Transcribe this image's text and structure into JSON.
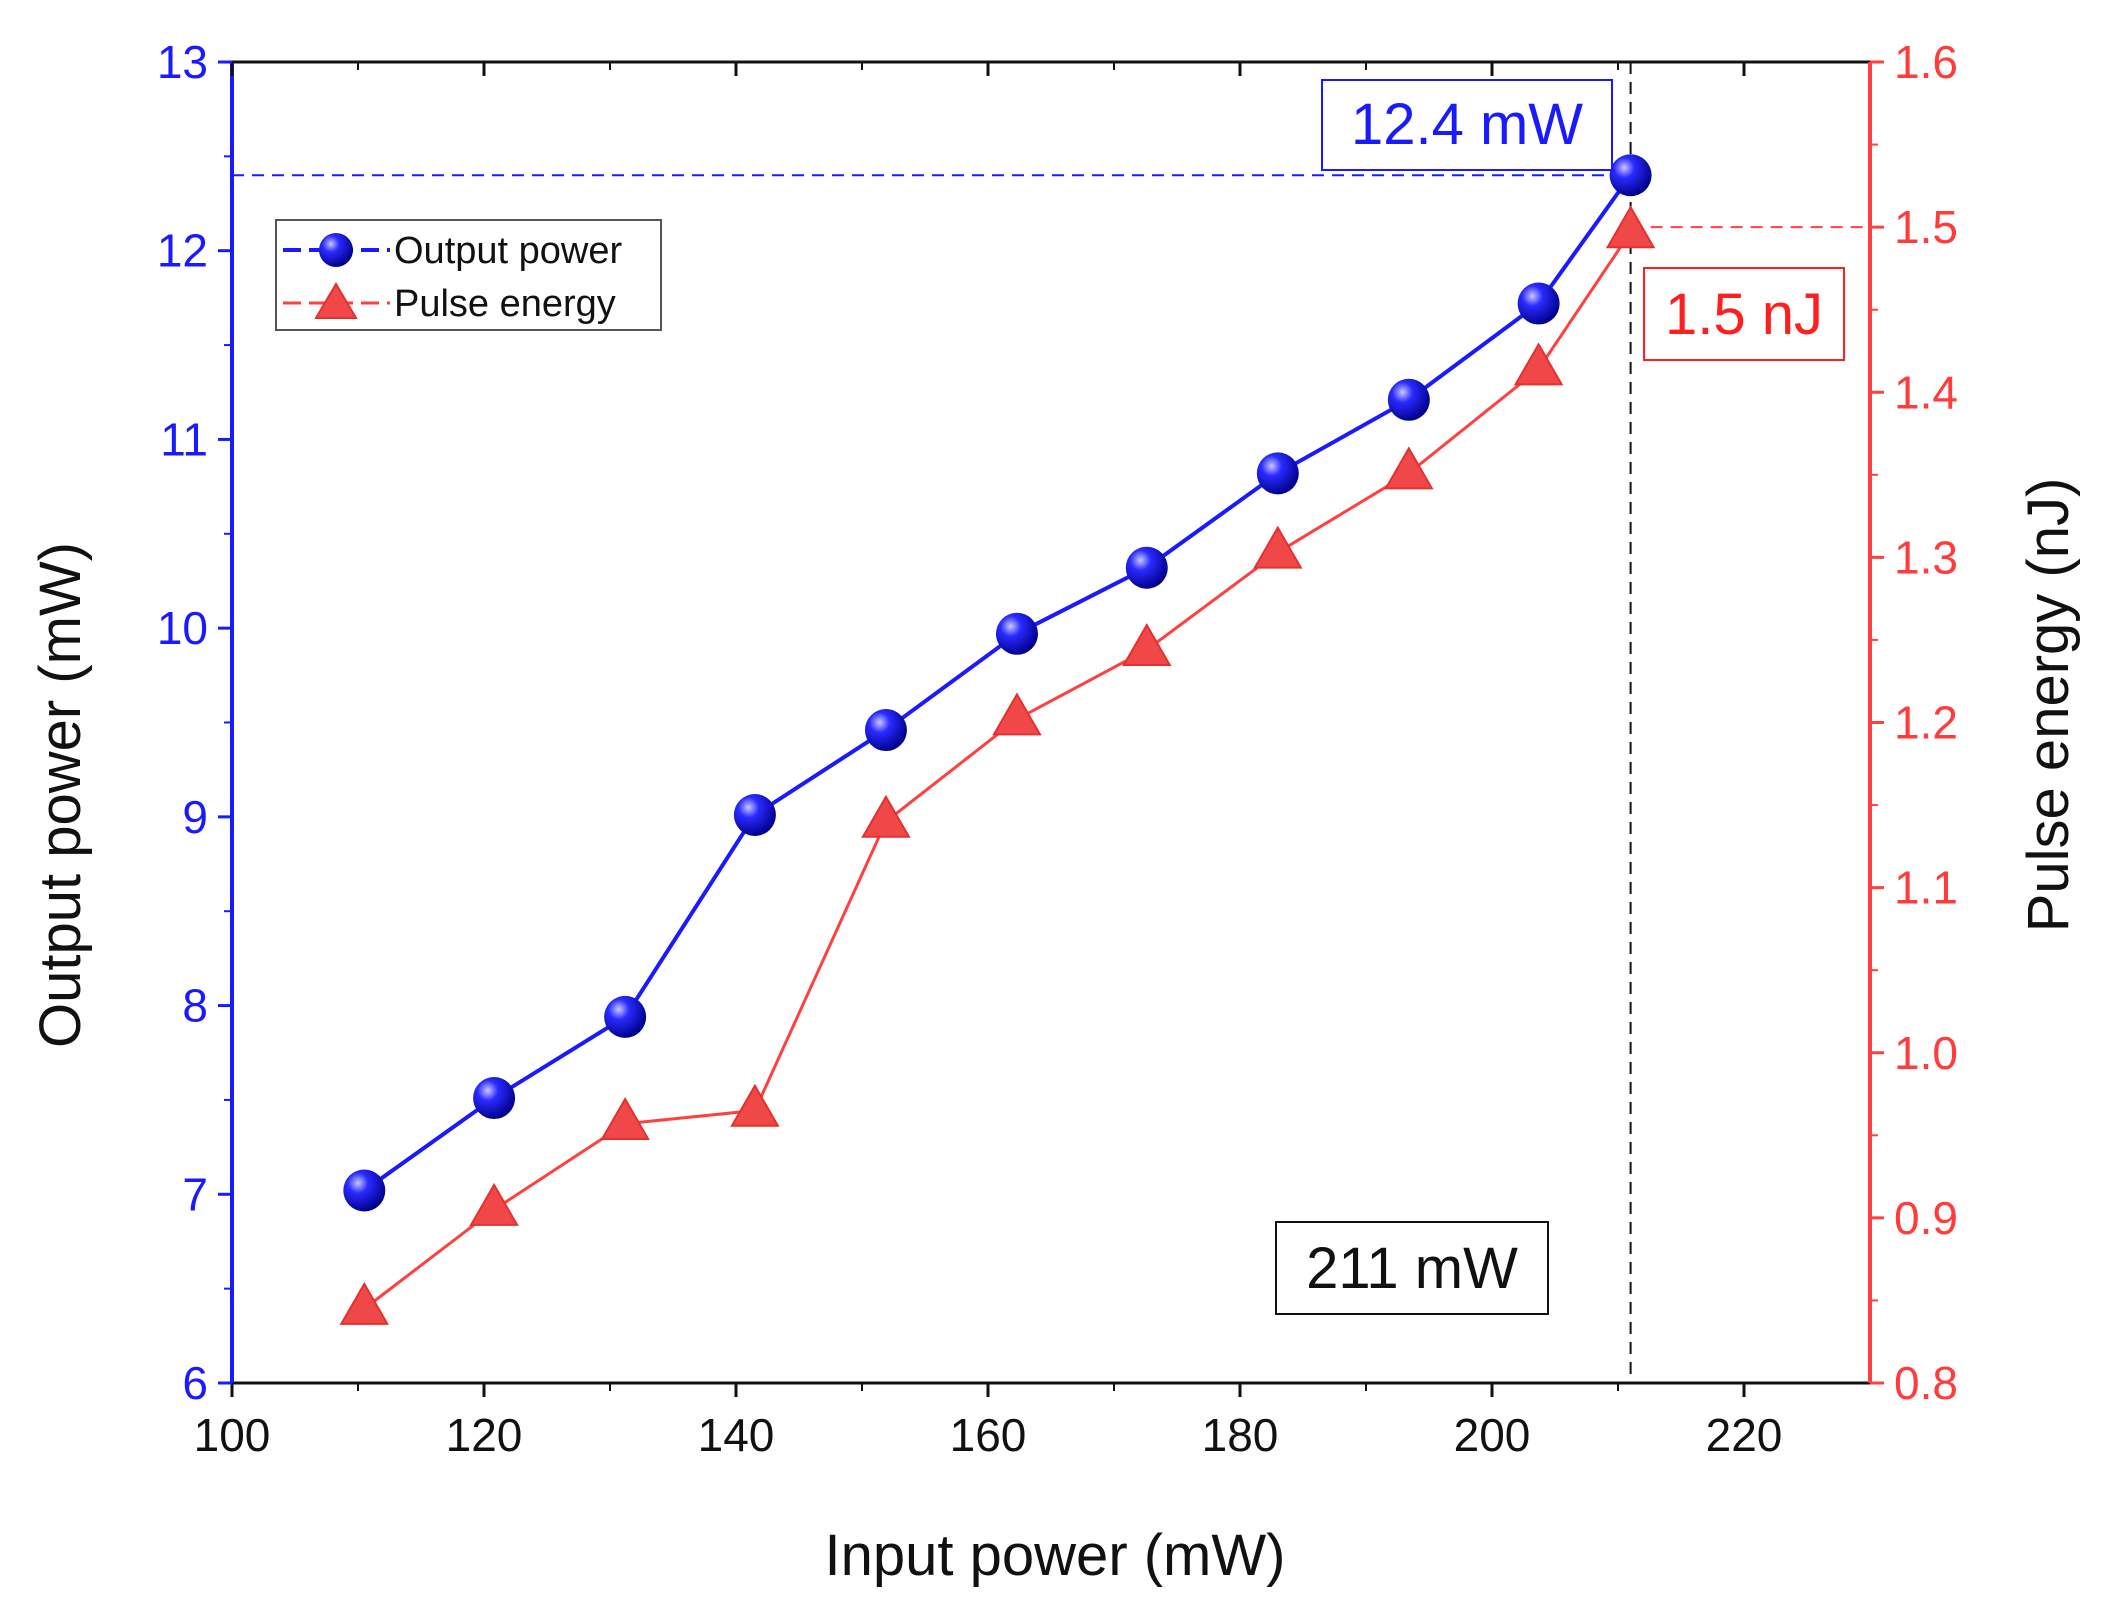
{
  "chart_data": {
    "type": "line",
    "title": "",
    "xlabel": "Input power (mW)",
    "ylabel_left": "Output power (mW)",
    "ylabel_right": "Pulse energy (nJ)",
    "xlim": [
      100,
      230
    ],
    "ylim_left": [
      6,
      13
    ],
    "ylim_right": [
      0.8,
      1.6
    ],
    "x_ticks": [
      100,
      120,
      140,
      160,
      180,
      200,
      220
    ],
    "x_tick_labels": [
      "100",
      "120",
      "140",
      "160",
      "180",
      "200",
      "220"
    ],
    "y_left_ticks": [
      6,
      7,
      8,
      9,
      10,
      11,
      12,
      13
    ],
    "y_left_tick_labels": [
      "6",
      "7",
      "8",
      "9",
      "10",
      "11",
      "12",
      "13"
    ],
    "y_right_ticks": [
      0.8,
      0.9,
      1.0,
      1.1,
      1.2,
      1.3,
      1.4,
      1.5,
      1.6
    ],
    "y_right_tick_labels": [
      "0.8",
      "0.9",
      "1.0",
      "1.1",
      "1.2",
      "1.3",
      "1.4",
      "1.5",
      "1.6"
    ],
    "x": [
      110.5,
      120.8,
      131.2,
      141.5,
      151.9,
      162.3,
      172.6,
      183.0,
      193.4,
      203.7,
      211.0
    ],
    "series": [
      {
        "name": "Output power",
        "axis": "left",
        "color": "#1a1aff",
        "marker": "circle",
        "values": [
          7.02,
          7.51,
          7.94,
          9.01,
          9.46,
          9.97,
          10.32,
          10.82,
          11.21,
          11.72,
          12.4
        ]
      },
      {
        "name": "Pulse energy",
        "axis": "right",
        "color": "#ff4040",
        "marker": "triangle",
        "values": [
          0.845,
          0.905,
          0.957,
          0.965,
          1.14,
          1.202,
          1.244,
          1.303,
          1.351,
          1.414,
          1.497
        ]
      }
    ],
    "legend": {
      "placement": "top-left",
      "entries": [
        "Output power",
        "Pulse energy"
      ]
    },
    "annotations": {
      "max_output": {
        "text": "12.4 mW",
        "x": 211,
        "y_left": 12.4,
        "color": "#1a1aff"
      },
      "max_energy": {
        "text": "1.5 nJ",
        "x": 211,
        "y_right": 1.5,
        "color": "#ff1f1f"
      },
      "max_input": {
        "text": "211 mW",
        "x": 211,
        "color": "#111111"
      }
    },
    "grid": false
  }
}
